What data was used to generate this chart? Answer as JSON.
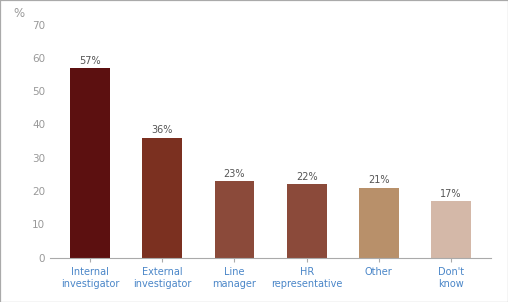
{
  "categories": [
    "Internal\ninvestigator",
    "External\ninvestigator",
    "Line\nmanager",
    "HR\nrepresentative",
    "Other",
    "Don't\nknow"
  ],
  "values": [
    57,
    36,
    23,
    22,
    21,
    17
  ],
  "bar_colors": [
    "#5c1010",
    "#7b3020",
    "#8b4a3a",
    "#8b4a3a",
    "#b8906a",
    "#d4b8a8"
  ],
  "ylabel": "%",
  "ylim": [
    0,
    70
  ],
  "yticks": [
    0,
    10,
    20,
    30,
    40,
    50,
    60,
    70
  ],
  "label_fontsize": 7,
  "tick_label_fontsize": 7.5,
  "ylabel_fontsize": 8.5,
  "bar_label_fontsize": 7,
  "bar_label_color": "#555555",
  "tick_color": "#999999",
  "xlabel_color": "#4a86c8",
  "background_color": "#ffffff",
  "border_color": "#aaaaaa",
  "bar_width": 0.55
}
